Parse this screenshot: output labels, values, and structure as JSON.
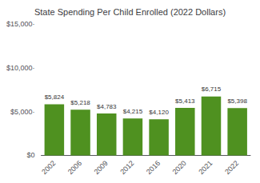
{
  "chart_data": {
    "type": "bar",
    "title": "State Spending Per Child Enrolled (2022 Dollars)",
    "categories": [
      "2002",
      "2006",
      "2009",
      "2012",
      "2016",
      "2020",
      "2021",
      "2022"
    ],
    "values": [
      5824,
      5218,
      4783,
      4215,
      4120,
      5413,
      6715,
      5398
    ],
    "value_labels": [
      "$5,824",
      "$5,218",
      "$4,783",
      "$4,215",
      "$4,120",
      "$5,413",
      "$6,715",
      "$5,398"
    ],
    "data_labels": true,
    "color": "#4f9120",
    "ylim": [
      0,
      15000
    ],
    "yticks": [
      {
        "value": 0,
        "label": "$0"
      },
      {
        "value": 5000,
        "label": "$5,000·"
      },
      {
        "value": 10000,
        "label": "$10,000·"
      },
      {
        "value": 15000,
        "label": "$15,000·"
      }
    ],
    "grid": false
  }
}
